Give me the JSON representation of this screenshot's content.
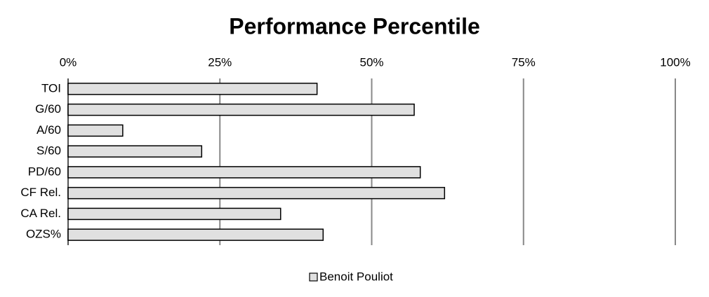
{
  "chart_data": {
    "type": "bar",
    "title": "Performance Percentile",
    "categories": [
      "TOI",
      "G/60",
      "A/60",
      "S/60",
      "PD/60",
      "CF Rel.",
      "CA Rel.",
      "OZS%"
    ],
    "series": [
      {
        "name": "Benoit Pouliot",
        "color": "#e0e0e0",
        "values": [
          41,
          57,
          9,
          22,
          58,
          62,
          35,
          42
        ]
      }
    ],
    "xlim": [
      0,
      100
    ],
    "xticks": [
      {
        "value": 0,
        "label": "0%"
      },
      {
        "value": 25,
        "label": "25%"
      },
      {
        "value": 50,
        "label": "50%"
      },
      {
        "value": 75,
        "label": "75%"
      },
      {
        "value": 100,
        "label": "100%"
      }
    ],
    "grid": true
  }
}
